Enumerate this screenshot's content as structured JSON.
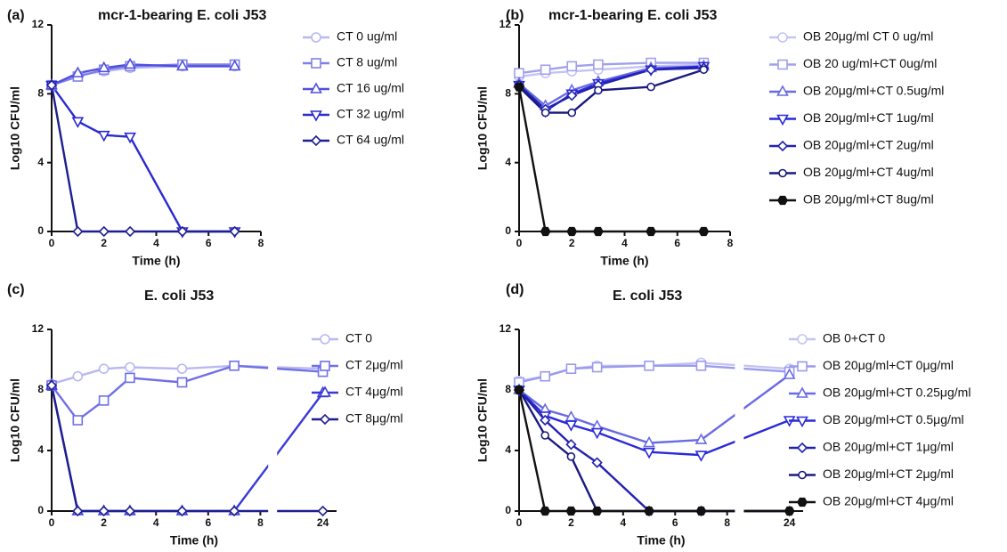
{
  "chart_data": [
    {
      "type": "line",
      "panel_label": "(a)",
      "title": "mcr-1-bearing E. coli J53",
      "xlabel": "Time (h)",
      "ylabel": "Log10 CFU/ml",
      "x": [
        0,
        1,
        2,
        3,
        5,
        7
      ],
      "xlim": [
        0,
        8
      ],
      "xticks": [
        0,
        2,
        4,
        6,
        8
      ],
      "ylim": [
        0,
        12
      ],
      "yticks": [
        0,
        4,
        8,
        12
      ],
      "series": [
        {
          "name": "CT 0 ug/ml",
          "color": "#b8b8f2",
          "marker": "circle",
          "values": [
            8.5,
            9.1,
            9.3,
            9.5,
            9.6,
            9.6
          ]
        },
        {
          "name": "CT 8 ug/ml",
          "color": "#8080e8",
          "marker": "square",
          "values": [
            8.5,
            9.0,
            9.4,
            9.6,
            9.7,
            9.7
          ]
        },
        {
          "name": "CT 16  ug/ml",
          "color": "#5050e0",
          "marker": "triangle-up",
          "values": [
            8.5,
            9.2,
            9.5,
            9.7,
            9.6,
            9.6
          ]
        },
        {
          "name": "CT 32 ug/ml",
          "color": "#2a2ad0",
          "marker": "triangle-down",
          "values": [
            8.5,
            6.4,
            5.6,
            5.5,
            0,
            0
          ]
        },
        {
          "name": "CT 64 ug/ml",
          "color": "#1e1e90",
          "marker": "diamond",
          "values": [
            8.5,
            0,
            0,
            0,
            0,
            0
          ]
        }
      ]
    },
    {
      "type": "line",
      "panel_label": "(b)",
      "title": "mcr-1-bearing E. coli J53",
      "xlabel": "Time (h)",
      "ylabel": "Log10 CFU/ml",
      "x": [
        0,
        1,
        2,
        3,
        5,
        7
      ],
      "xlim": [
        0,
        8
      ],
      "xticks": [
        0,
        2,
        4,
        6,
        8
      ],
      "ylim": [
        0,
        12
      ],
      "yticks": [
        0,
        4,
        8,
        12
      ],
      "series": [
        {
          "name": "OB 20μg/ml CT 0 ug/ml",
          "color": "#c4c4f4",
          "marker": "circle",
          "values": [
            9.0,
            9.2,
            9.3,
            9.4,
            9.6,
            9.7
          ]
        },
        {
          "name": "OB 20 ug/ml+CT 0ug/ml",
          "color": "#a0a0ee",
          "marker": "square",
          "values": [
            9.2,
            9.4,
            9.6,
            9.7,
            9.8,
            9.8
          ]
        },
        {
          "name": "OB 20μg/ml+CT 0.5ug/ml",
          "color": "#6a6ae4",
          "marker": "triangle-up",
          "values": [
            8.6,
            7.3,
            8.2,
            8.7,
            9.5,
            9.6
          ]
        },
        {
          "name": "OB 20μg/ml+CT 1ug/ml",
          "color": "#2a2ad8",
          "marker": "triangle-down",
          "values": [
            8.5,
            7.0,
            8.0,
            8.6,
            9.4,
            9.6
          ]
        },
        {
          "name": "OB 20μg/ml+CT 2ug/ml",
          "color": "#2222b0",
          "marker": "diamond",
          "values": [
            8.5,
            7.1,
            7.9,
            8.5,
            9.4,
            9.5
          ]
        },
        {
          "name": "OB 20μg/ml+CT 4ug/ml",
          "color": "#1a1a80",
          "marker": "small-circle",
          "values": [
            8.4,
            6.9,
            6.9,
            8.2,
            8.4,
            9.4
          ]
        },
        {
          "name": "OB 20μg/ml+CT 8ug/ml",
          "color": "#111111",
          "marker": "hexagon",
          "values": [
            8.4,
            0,
            0,
            0,
            0,
            0
          ]
        }
      ]
    },
    {
      "type": "line",
      "panel_label": "(c)",
      "title": "E. coli J53",
      "xlabel": "Time (h)",
      "ylabel": "Log10 CFU/ml",
      "x": [
        0,
        1,
        2,
        3,
        5,
        7,
        24
      ],
      "xlim": [
        0,
        24.3
      ],
      "xbreak": [
        8.3,
        23
      ],
      "xticks": [
        0,
        2,
        4,
        6,
        8,
        24
      ],
      "ylim": [
        0,
        12
      ],
      "yticks": [
        0,
        4,
        8,
        12
      ],
      "series": [
        {
          "name": "CT 0",
          "color": "#b8b8f2",
          "marker": "circle",
          "values": [
            8.4,
            8.9,
            9.4,
            9.5,
            9.4,
            9.6,
            9.4
          ]
        },
        {
          "name": "CT 2μg/ml",
          "color": "#7070e6",
          "marker": "square",
          "values": [
            8.3,
            6.0,
            7.3,
            8.8,
            8.5,
            9.6,
            9.2
          ]
        },
        {
          "name": "CT 4μg/ml",
          "color": "#3a3ad8",
          "marker": "triangle-up",
          "values": [
            8.3,
            0,
            0,
            0,
            0,
            0,
            7.8
          ]
        },
        {
          "name": "CT 8μg/ml",
          "color": "#1e1e90",
          "marker": "diamond",
          "values": [
            8.3,
            0,
            0,
            0,
            0,
            0,
            0
          ]
        }
      ]
    },
    {
      "type": "line",
      "panel_label": "(d)",
      "title": "E. coli J53",
      "xlabel": "Time (h)",
      "ylabel": "Log10 CFU/ml",
      "x": [
        0,
        1,
        2,
        3,
        5,
        7,
        24
      ],
      "xlim": [
        0,
        24.3
      ],
      "xbreak": [
        8.3,
        23
      ],
      "xticks": [
        0,
        2,
        4,
        6,
        8,
        24
      ],
      "ylim": [
        0,
        12
      ],
      "yticks": [
        0,
        4,
        8,
        12
      ],
      "series": [
        {
          "name": "OB 0+CT 0",
          "color": "#c4c4f4",
          "marker": "circle",
          "values": [
            8.6,
            8.9,
            9.4,
            9.6,
            9.6,
            9.8,
            9.4
          ]
        },
        {
          "name": "OB 20μg/ml+CT 0μg/ml",
          "color": "#9a9aee",
          "marker": "square",
          "values": [
            8.5,
            8.9,
            9.4,
            9.5,
            9.6,
            9.6,
            9.2
          ]
        },
        {
          "name": "OB 20μg/ml+CT 0.25μg/ml",
          "color": "#6a6ae4",
          "marker": "triangle-up",
          "values": [
            8.0,
            6.7,
            6.2,
            5.6,
            4.5,
            4.7,
            9.0
          ]
        },
        {
          "name": "OB 20μg/ml+CT 0.5μg/ml",
          "color": "#2a2ad8",
          "marker": "triangle-down",
          "values": [
            8.0,
            6.3,
            5.7,
            5.2,
            3.9,
            3.7,
            6.0
          ]
        },
        {
          "name": "OB 20μg/ml+CT 1μg/ml",
          "color": "#2222b0",
          "marker": "diamond",
          "values": [
            8.0,
            6.0,
            4.4,
            3.2,
            0,
            0,
            0
          ]
        },
        {
          "name": "OB 20μg/ml+CT 2μg/ml",
          "color": "#1a1a80",
          "marker": "small-circle",
          "values": [
            8.0,
            5.0,
            3.6,
            0,
            0,
            0,
            0
          ]
        },
        {
          "name": "OB 20μg/ml+CT 4μg/ml",
          "color": "#111111",
          "marker": "hexagon",
          "values": [
            8.0,
            0,
            0,
            0,
            0,
            0,
            0
          ]
        }
      ]
    }
  ]
}
